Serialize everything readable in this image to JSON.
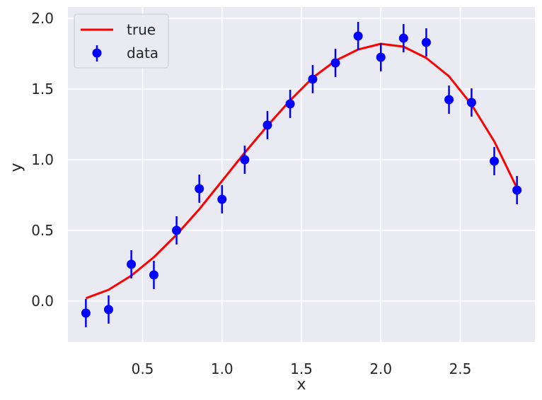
{
  "chart_data": {
    "type": "scatter",
    "xlabel": "x",
    "ylabel": "y",
    "xlim": [
      0.03,
      2.97
    ],
    "ylim": [
      -0.29,
      2.08
    ],
    "xticks": [
      0.5,
      1.0,
      1.5,
      2.0,
      2.5
    ],
    "xtick_labels": [
      "0.5",
      "1.0",
      "1.5",
      "2.0",
      "2.5"
    ],
    "yticks": [
      0.0,
      0.5,
      1.0,
      1.5,
      2.0
    ],
    "ytick_labels": [
      "0.0",
      "0.5",
      "1.0",
      "1.5",
      "2.0"
    ],
    "grid": true,
    "legend_position": "top-left",
    "series": [
      {
        "name": "true",
        "kind": "line",
        "color": "#ff0000",
        "x": [
          0.143,
          0.286,
          0.429,
          0.571,
          0.714,
          0.857,
          1.0,
          1.143,
          1.286,
          1.429,
          1.571,
          1.714,
          1.857,
          2.0,
          2.143,
          2.286,
          2.429,
          2.571,
          2.714,
          2.857
        ],
        "y": [
          0.02,
          0.08,
          0.18,
          0.31,
          0.47,
          0.65,
          0.85,
          1.05,
          1.24,
          1.42,
          1.58,
          1.7,
          1.78,
          1.82,
          1.8,
          1.72,
          1.59,
          1.39,
          1.13,
          0.8
        ]
      },
      {
        "name": "data",
        "kind": "errorbar",
        "color": "#0000ff",
        "x": [
          0.143,
          0.286,
          0.429,
          0.571,
          0.714,
          0.857,
          1.0,
          1.143,
          1.286,
          1.429,
          1.571,
          1.714,
          1.857,
          2.0,
          2.143,
          2.286,
          2.429,
          2.571,
          2.714,
          2.857
        ],
        "y": [
          -0.085,
          -0.06,
          0.26,
          0.185,
          0.5,
          0.795,
          0.72,
          1.0,
          1.245,
          1.395,
          1.57,
          1.685,
          1.875,
          1.725,
          1.86,
          1.83,
          1.425,
          1.405,
          0.99,
          0.785
        ],
        "yerr": 0.1
      }
    ]
  }
}
